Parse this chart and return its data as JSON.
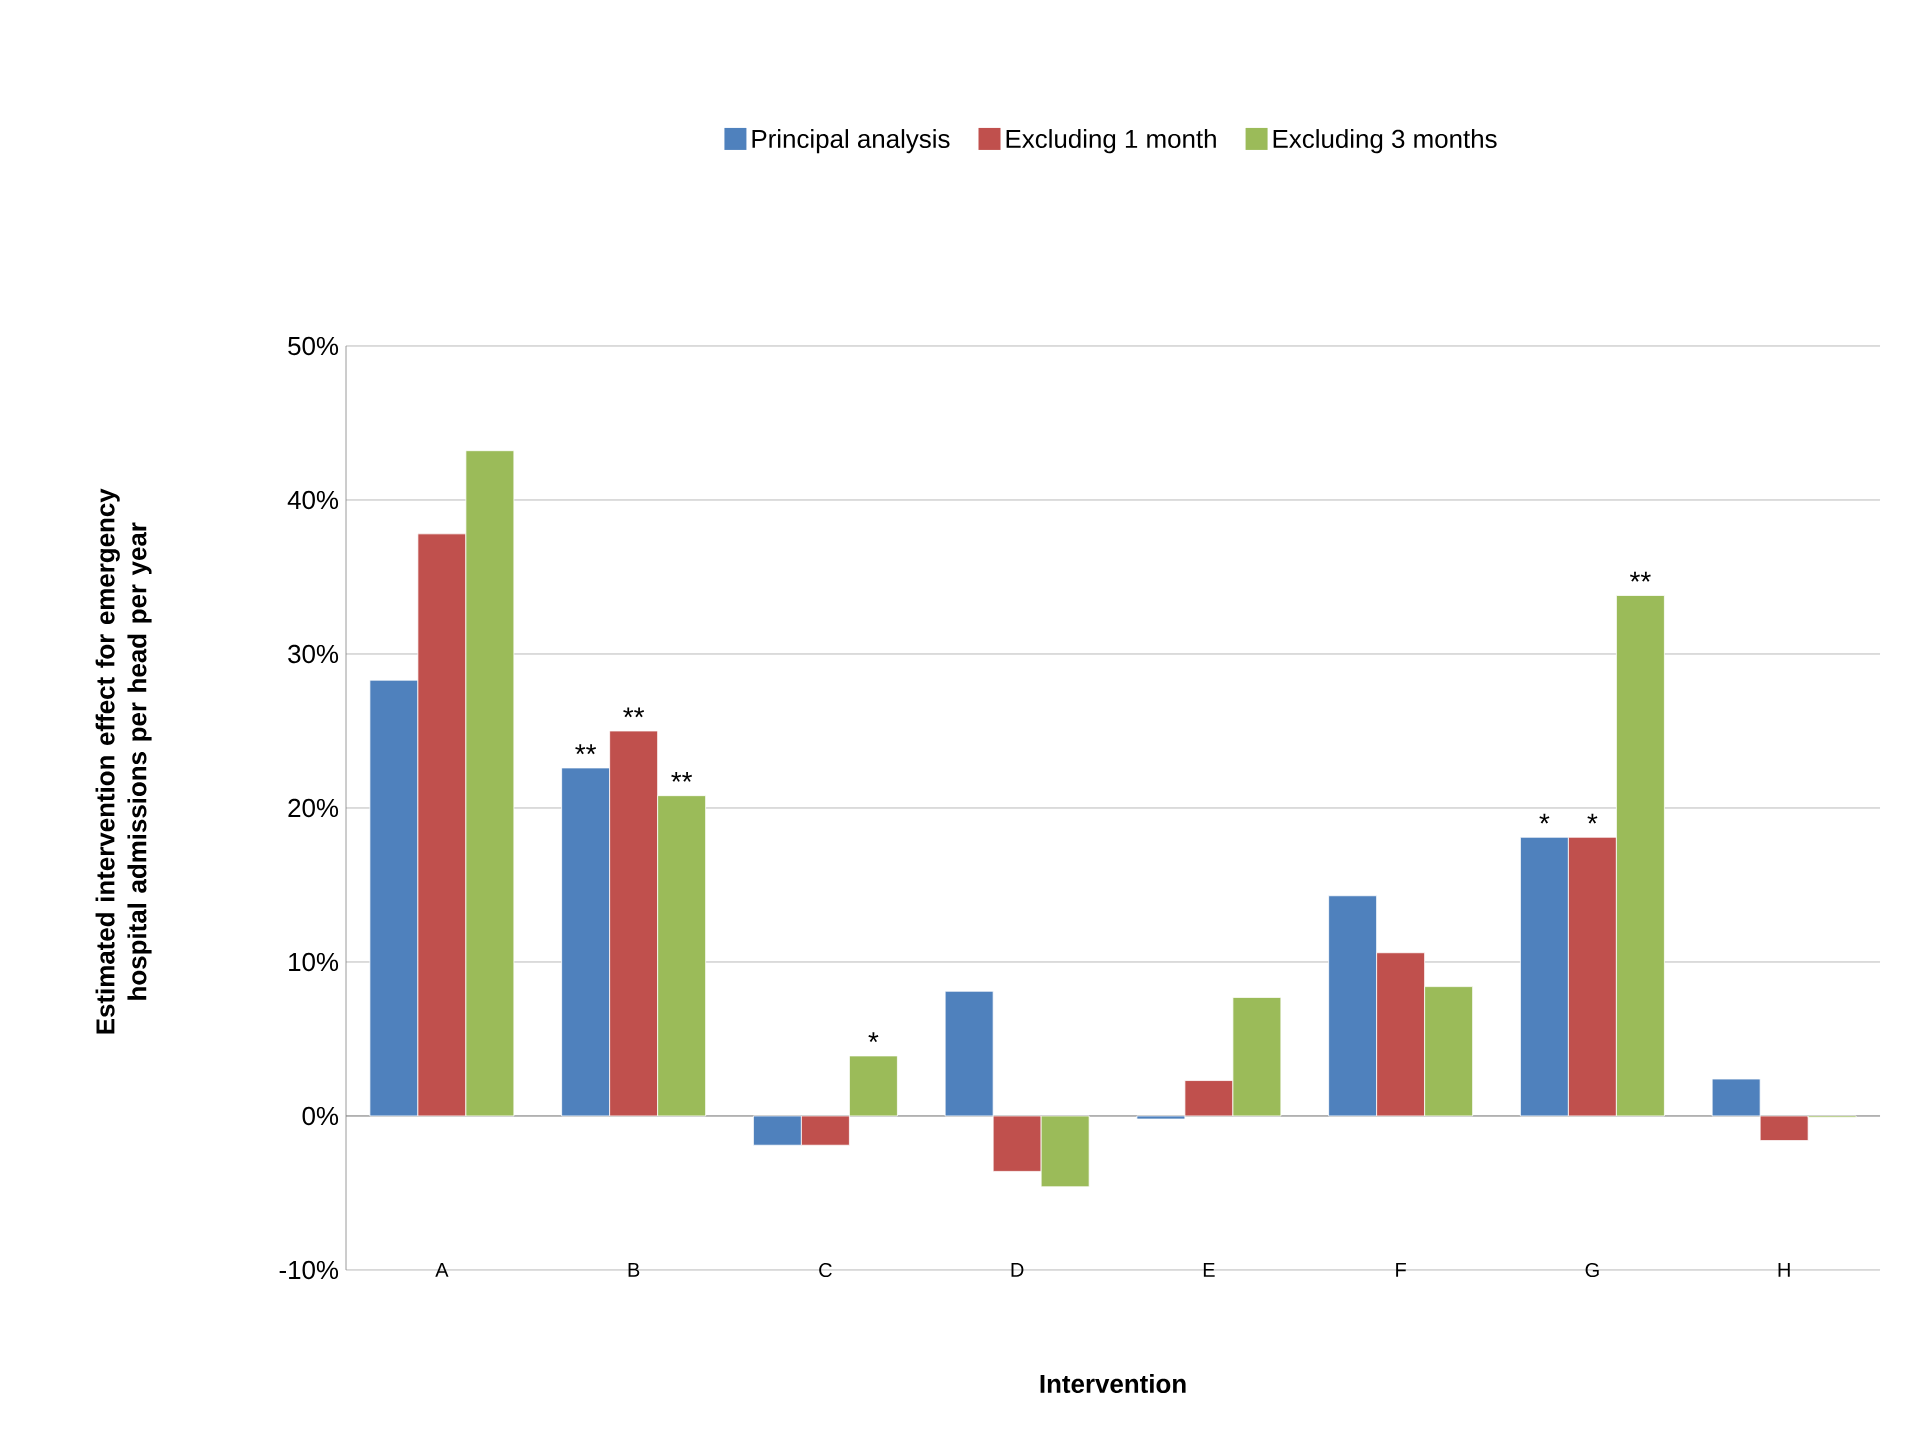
{
  "chart_data": {
    "type": "bar",
    "xlabel": "Intervention",
    "ylabel": "Estimated intervention effect for emergency hospital admissions per head per year",
    "categories": [
      "A",
      "B",
      "C",
      "D",
      "E",
      "F",
      "G",
      "H"
    ],
    "series": [
      {
        "name": "Principal analysis",
        "color": "#4f81bd",
        "values": [
          28.3,
          22.6,
          -1.9,
          8.1,
          -0.2,
          14.3,
          18.1,
          2.4
        ],
        "value_labels": [
          null,
          "**",
          null,
          null,
          null,
          null,
          "*",
          null
        ]
      },
      {
        "name": "Excluding 1 month",
        "color": "#c0504d",
        "values": [
          37.8,
          25.0,
          -1.9,
          -3.6,
          2.3,
          10.6,
          18.1,
          -1.6
        ],
        "value_labels": [
          null,
          "**",
          null,
          null,
          null,
          null,
          "*",
          null
        ]
      },
      {
        "name": "Excluding 3 months",
        "color": "#9bbb59",
        "values": [
          43.2,
          20.8,
          3.9,
          -4.6,
          7.7,
          8.4,
          33.8,
          -0.1
        ],
        "value_labels": [
          null,
          "**",
          "*",
          null,
          null,
          null,
          "**",
          null
        ]
      }
    ],
    "ylim": [
      -10,
      50
    ],
    "yticks": [
      {
        "value": -10,
        "label": "-10%"
      },
      {
        "value": 0,
        "label": "0%"
      },
      {
        "value": 10,
        "label": "10%"
      },
      {
        "value": 20,
        "label": "20%"
      },
      {
        "value": 30,
        "label": "30%"
      },
      {
        "value": 40,
        "label": "40%"
      },
      {
        "value": 50,
        "label": "50%"
      }
    ],
    "grid": "y",
    "legend": "top"
  }
}
